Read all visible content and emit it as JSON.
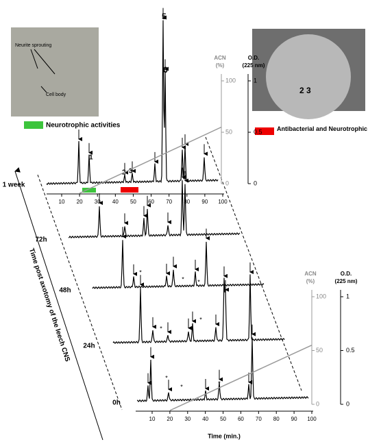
{
  "inset_photo": {
    "labels": [
      "Neurite sprouting",
      "Cell body"
    ]
  },
  "inset_plate": {
    "label": "2 3"
  },
  "legend": {
    "green": "Neurotrophic activities",
    "red": "Antibacterial and Neurotrophic activities"
  },
  "traces": [
    "1 week",
    "72h",
    "48h",
    "24h",
    "0h"
  ],
  "peak_labels": {
    "p1": "1",
    "p2": "2",
    "p3": "3",
    "p5": "5",
    "p6": "6"
  },
  "asterisk": "*",
  "depth_axis_title": "Time post axotomy of the leech CNS",
  "x_axis_title": "Time (min.)",
  "x_ticks": [
    10,
    20,
    30,
    40,
    50,
    60,
    70,
    80,
    90,
    100
  ],
  "acn_title": [
    "ACN",
    "(%)"
  ],
  "od_title": [
    "O.D.",
    "(225 nm)"
  ],
  "acn_ticks": [
    0,
    50,
    100
  ],
  "od_ticks": [
    0,
    0.5,
    1
  ]
}
